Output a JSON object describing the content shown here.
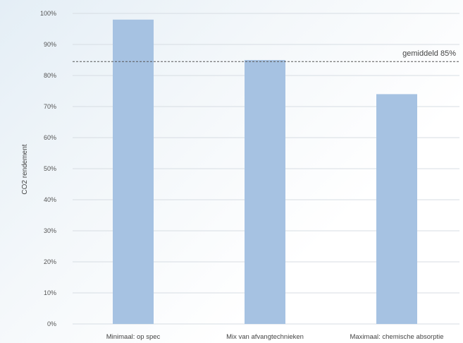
{
  "chart_data": {
    "type": "bar",
    "categories": [
      "Minimaal: op spec",
      "Mix van afvangtechnieken",
      "Maximaal: chemische absorptie"
    ],
    "values": [
      98,
      85,
      74
    ],
    "ylabel": "CO2 rendement",
    "xlabel": "",
    "ylim": [
      0,
      100
    ],
    "yticks": [
      "0%",
      "10%",
      "20%",
      "30%",
      "40%",
      "50%",
      "60%",
      "70%",
      "80%",
      "90%",
      "100%"
    ],
    "reference_line": {
      "value": 84.5,
      "label": "gemiddeld 85%"
    },
    "grid": true,
    "bar_color": "#a6c2e2"
  }
}
